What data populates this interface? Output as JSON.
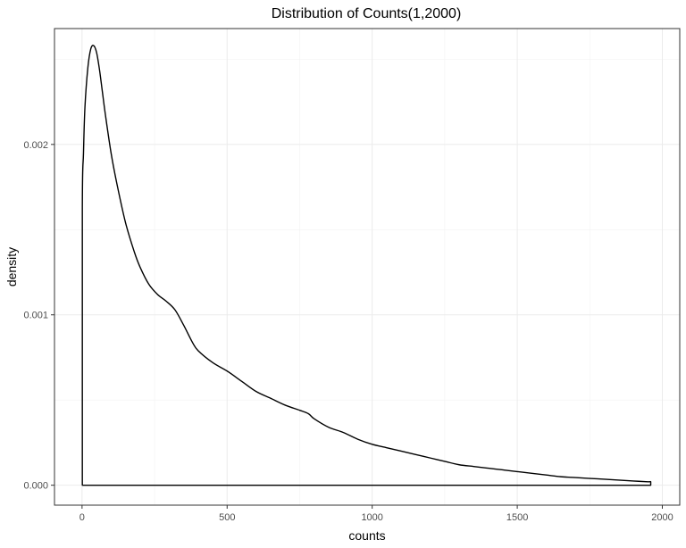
{
  "chart_data": {
    "type": "area",
    "title": "Distribution of Counts(1,2000)",
    "xlabel": "counts",
    "ylabel": "density",
    "xlim": [
      -95,
      2060
    ],
    "ylim": [
      -0.000117,
      0.00268
    ],
    "x_ticks": [
      {
        "value": 0,
        "label": "0"
      },
      {
        "value": 500,
        "label": "500"
      },
      {
        "value": 1000,
        "label": "1000"
      },
      {
        "value": 1500,
        "label": "1500"
      },
      {
        "value": 2000,
        "label": "2000"
      }
    ],
    "y_ticks": [
      {
        "value": 0,
        "label": "0.000"
      },
      {
        "value": 0.001,
        "label": "0.001"
      },
      {
        "value": 0.002,
        "label": "0.002"
      }
    ],
    "x_minor_ticks": [
      250,
      750,
      1250,
      1750
    ],
    "y_minor_ticks": [
      0.0005,
      0.0015,
      0.0025
    ],
    "grid": true,
    "legend": "none",
    "line_color": "#000000",
    "series": [
      {
        "x": [
          1,
          1,
          5,
          10,
          20,
          30,
          40,
          50,
          60,
          70,
          80,
          100,
          120,
          150,
          180,
          200,
          230,
          260,
          290,
          320,
          350,
          380,
          400,
          450,
          500,
          550,
          600,
          650,
          700,
          750,
          780,
          800,
          850,
          900,
          950,
          1000,
          1050,
          1100,
          1150,
          1200,
          1250,
          1300,
          1350,
          1400,
          1450,
          1500,
          1550,
          1600,
          1650,
          1700,
          1750,
          1800,
          1850,
          1900,
          1950,
          1960,
          1960,
          1
        ],
        "y": [
          0,
          0.00162,
          0.00195,
          0.00222,
          0.00245,
          0.00256,
          0.00258,
          0.00254,
          0.00244,
          0.00231,
          0.00218,
          0.00195,
          0.00177,
          0.00154,
          0.00137,
          0.00128,
          0.00118,
          0.00112,
          0.00108,
          0.00103,
          0.00094,
          0.00084,
          0.00079,
          0.00072,
          0.00067,
          0.00061,
          0.00055,
          0.00051,
          0.00047,
          0.00044,
          0.00042,
          0.00039,
          0.00034,
          0.00031,
          0.00027,
          0.00024,
          0.00022,
          0.0002,
          0.00018,
          0.00016,
          0.00014,
          0.00012,
          0.00011,
          0.0001,
          9e-05,
          8e-05,
          7e-05,
          6e-05,
          5e-05,
          4.5e-05,
          4e-05,
          3.5e-05,
          3e-05,
          2.5e-05,
          2e-05,
          2e-05,
          0,
          0
        ]
      }
    ]
  }
}
